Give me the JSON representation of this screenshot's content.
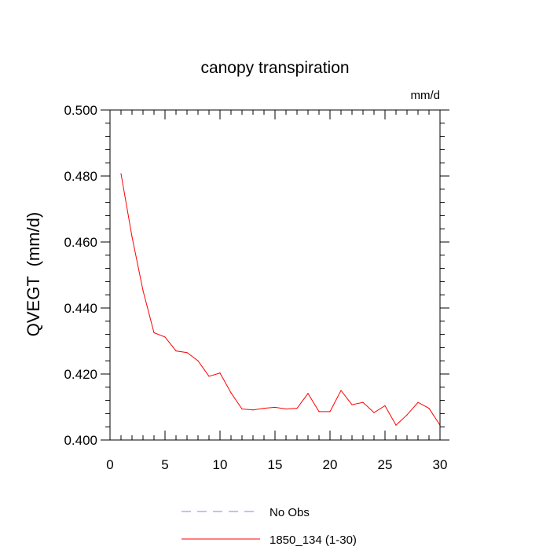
{
  "chart_data": {
    "type": "line",
    "title": "canopy transpiration",
    "units_label": "mm/d",
    "ylabel": "QVEGT  (mm/d)",
    "xlabel": "",
    "xlim": [
      0,
      30
    ],
    "ylim": [
      0.4,
      0.5
    ],
    "x_ticks": [
      0,
      5,
      10,
      15,
      20,
      25,
      30
    ],
    "x_tick_labels": [
      "0",
      "5",
      "10",
      "15",
      "20",
      "25",
      "30"
    ],
    "y_ticks": [
      0.4,
      0.42,
      0.44,
      0.46,
      0.48,
      0.5
    ],
    "y_tick_labels": [
      "0.400",
      "0.420",
      "0.440",
      "0.460",
      "0.480",
      "0.500"
    ],
    "grid": false,
    "legend_position": "bottom-center",
    "series": [
      {
        "name": "1850_134 (1-30)",
        "color": "#ff0000",
        "style": "solid",
        "x": [
          1,
          2,
          3,
          4,
          5,
          6,
          7,
          8,
          9,
          10,
          11,
          12,
          13,
          14,
          15,
          16,
          17,
          18,
          19,
          20,
          21,
          22,
          23,
          24,
          25,
          26,
          27,
          28,
          29,
          30
        ],
        "values": [
          0.4807,
          0.4616,
          0.4453,
          0.4325,
          0.4312,
          0.427,
          0.4265,
          0.424,
          0.4193,
          0.4203,
          0.4143,
          0.4094,
          0.4091,
          0.4096,
          0.4099,
          0.4094,
          0.4096,
          0.4141,
          0.4086,
          0.4086,
          0.415,
          0.4107,
          0.4114,
          0.4083,
          0.4104,
          0.4045,
          0.4076,
          0.4114,
          0.4096,
          0.4045
        ]
      }
    ],
    "legend": [
      {
        "label": "No Obs",
        "color": "#8080ff",
        "style": "dashed"
      },
      {
        "label": "1850_134 (1-30)",
        "color": "#ff0000",
        "style": "solid"
      }
    ]
  }
}
